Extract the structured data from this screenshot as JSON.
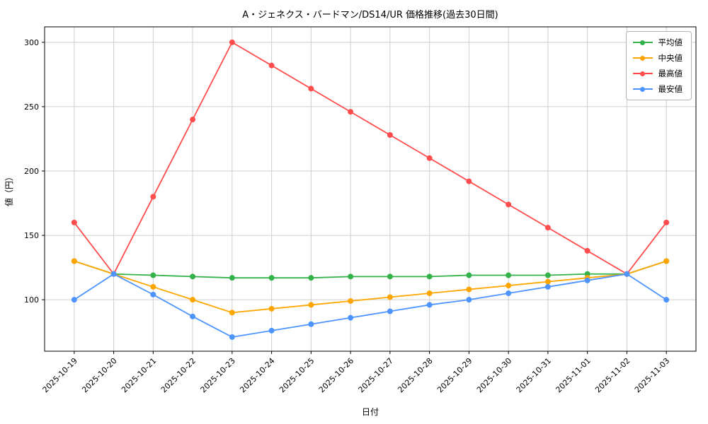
{
  "chart_data": {
    "type": "line",
    "title": "A・ジェネクス・バードマン/DS14/UR 価格推移(過去30日間)",
    "xlabel": "日付",
    "ylabel": "値（円）",
    "grid": true,
    "legend_position": "upper right",
    "ylim": [
      60,
      312
    ],
    "yticks": [
      100,
      150,
      200,
      250,
      300
    ],
    "x": [
      "2025-10-19",
      "2025-10-20",
      "2025-10-21",
      "2025-10-22",
      "2025-10-23",
      "2025-10-24",
      "2025-10-25",
      "2025-10-26",
      "2025-10-27",
      "2025-10-28",
      "2025-10-29",
      "2025-10-30",
      "2025-10-31",
      "2025-11-01",
      "2025-11-02",
      "2025-11-03"
    ],
    "series": [
      {
        "name": "平均値",
        "color": "#33b249",
        "values": [
          130,
          120,
          119,
          118,
          117,
          117,
          117,
          118,
          118,
          118,
          119,
          119,
          119,
          120,
          120,
          130
        ]
      },
      {
        "name": "中央値",
        "color": "#ffa500",
        "values": [
          130,
          120,
          110,
          100,
          90,
          93,
          96,
          99,
          102,
          105,
          108,
          111,
          114,
          117,
          120,
          130
        ]
      },
      {
        "name": "最高値",
        "color": "#ff4d4d",
        "values": [
          160,
          120,
          180,
          240,
          300,
          282,
          264,
          246,
          228,
          210,
          192,
          174,
          156,
          138,
          120,
          160
        ]
      },
      {
        "name": "最安値",
        "color": "#4d94ff",
        "values": [
          100,
          120,
          104,
          87,
          71,
          76,
          81,
          86,
          91,
          96,
          100,
          105,
          110,
          115,
          120,
          100
        ]
      }
    ]
  }
}
